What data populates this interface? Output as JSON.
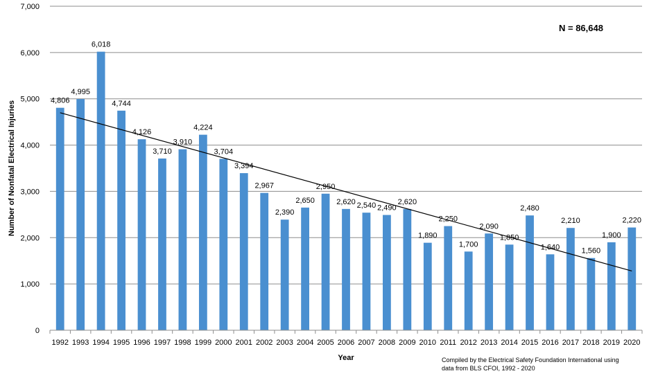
{
  "chart_data": {
    "type": "bar",
    "title": "",
    "xlabel": "Year",
    "ylabel": "Number of Nonfatal Electrical Injuries",
    "categories": [
      "1992",
      "1993",
      "1994",
      "1995",
      "1996",
      "1997",
      "1998",
      "1999",
      "2000",
      "2001",
      "2002",
      "2003",
      "2004",
      "2005",
      "2006",
      "2007",
      "2008",
      "2009",
      "2010",
      "2011",
      "2012",
      "2013",
      "2014",
      "2015",
      "2016",
      "2017",
      "2018",
      "2019",
      "2020"
    ],
    "values": [
      4806,
      4995,
      6018,
      4744,
      4126,
      3710,
      3910,
      4224,
      3704,
      3394,
      2967,
      2390,
      2650,
      2950,
      2620,
      2540,
      2490,
      2620,
      1890,
      2250,
      1700,
      2090,
      1850,
      2480,
      1640,
      2210,
      1560,
      1900,
      2220
    ],
    "value_labels": [
      "4,806",
      "4,995",
      "6,018",
      "4,744",
      "4,126",
      "3,710",
      "3,910",
      "4,224",
      "3,704",
      "3,394",
      "2,967",
      "2,390",
      "2,650",
      "2,950",
      "2,620",
      "2,540",
      "2,490",
      "2,620",
      "1,890",
      "2,250",
      "1,700",
      "2,090",
      "1,850",
      "2,480",
      "1,640",
      "2,210",
      "1,560",
      "1,900",
      "2,220"
    ],
    "y_ticks": [
      0,
      1000,
      2000,
      3000,
      4000,
      5000,
      6000,
      7000
    ],
    "y_tick_labels": [
      "0",
      "1,000",
      "2,000",
      "3,000",
      "4,000",
      "5,000",
      "6,000",
      "7,000"
    ],
    "ylim": [
      0,
      7000
    ],
    "grid": true,
    "bar_color": "#4a8fd0",
    "trendline": {
      "type": "linear",
      "start_value": 4700,
      "end_value": 1280,
      "color": "#000000"
    },
    "annotations": {
      "n_label": "N = 86,648",
      "source_line1": "Compiled by the Electrical Safety Foundation International using",
      "source_line2": "data from BLS CFOI, 1992 - 2020"
    }
  }
}
